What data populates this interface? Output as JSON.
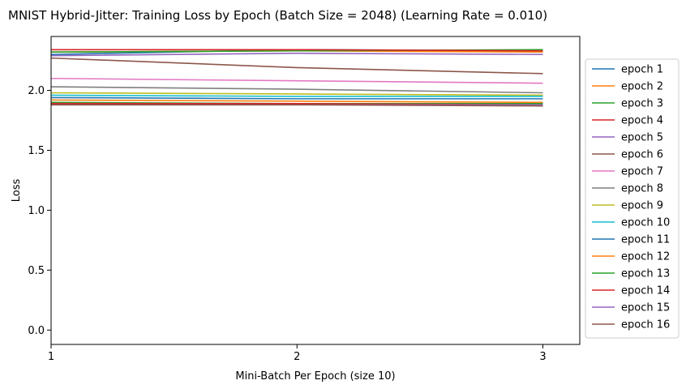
{
  "chart_data": {
    "type": "line",
    "title": "MNIST Hybrid-Jitter: Training Loss by Epoch (Batch Size = 2048) (Learning Rate = 0.010)",
    "xlabel": "Mini-Batch Per Epoch (size 10)",
    "ylabel": "Loss",
    "x": [
      1,
      2,
      3
    ],
    "xticks": [
      "1",
      "2",
      "3"
    ],
    "yticks": [
      "0.0",
      "0.5",
      "1.0",
      "1.5",
      "2.0"
    ],
    "xlim": [
      1,
      3.15
    ],
    "ylim": [
      -0.12,
      2.45
    ],
    "grid": false,
    "legend_position": "outside-right",
    "series": [
      {
        "name": "epoch 1",
        "color": "#1f77b4",
        "values": [
          2.3,
          2.34,
          2.33
        ]
      },
      {
        "name": "epoch 2",
        "color": "#ff7f0e",
        "values": [
          2.32,
          2.33,
          2.32
        ]
      },
      {
        "name": "epoch 3",
        "color": "#2ca02c",
        "values": [
          2.32,
          2.33,
          2.34
        ]
      },
      {
        "name": "epoch 4",
        "color": "#d62728",
        "values": [
          2.34,
          2.34,
          2.33
        ]
      },
      {
        "name": "epoch 5",
        "color": "#9467bd",
        "values": [
          2.29,
          2.31,
          2.3
        ]
      },
      {
        "name": "epoch 6",
        "color": "#8c564b",
        "values": [
          2.27,
          2.19,
          2.14
        ]
      },
      {
        "name": "epoch 7",
        "color": "#e377c2",
        "values": [
          2.1,
          2.08,
          2.06
        ]
      },
      {
        "name": "epoch 8",
        "color": "#7f7f7f",
        "values": [
          2.03,
          2.01,
          1.98
        ]
      },
      {
        "name": "epoch 9",
        "color": "#bcbd22",
        "values": [
          1.98,
          1.97,
          1.96
        ]
      },
      {
        "name": "epoch 10",
        "color": "#17becf",
        "values": [
          1.96,
          1.95,
          1.95
        ]
      },
      {
        "name": "epoch 11",
        "color": "#1f77b4",
        "values": [
          1.94,
          1.93,
          1.93
        ]
      },
      {
        "name": "epoch 12",
        "color": "#ff7f0e",
        "values": [
          1.92,
          1.91,
          1.9
        ]
      },
      {
        "name": "epoch 13",
        "color": "#2ca02c",
        "values": [
          1.9,
          1.89,
          1.89
        ]
      },
      {
        "name": "epoch 14",
        "color": "#d62728",
        "values": [
          1.89,
          1.89,
          1.88
        ]
      },
      {
        "name": "epoch 15",
        "color": "#9467bd",
        "values": [
          1.88,
          1.88,
          1.88
        ]
      },
      {
        "name": "epoch 16",
        "color": "#8c564b",
        "values": [
          1.88,
          1.88,
          1.87
        ]
      }
    ]
  }
}
